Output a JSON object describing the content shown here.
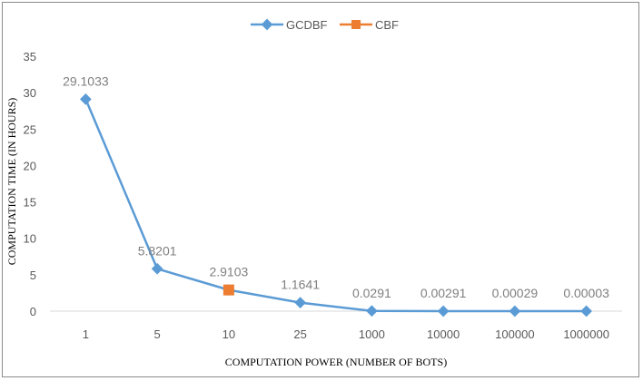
{
  "chart_data": {
    "type": "line",
    "categories": [
      "1",
      "5",
      "10",
      "25",
      "1000",
      "10000",
      "100000",
      "1000000"
    ],
    "series": [
      {
        "name": "GCDBF",
        "color": "#5b9bd5",
        "marker": "diamond",
        "values": [
          29.1033,
          5.8201,
          2.9103,
          1.1641,
          0.0291,
          0.00291,
          0.00029,
          3e-05
        ]
      },
      {
        "name": "CBF",
        "color": "#ed7d31",
        "marker": "square",
        "values": [
          null,
          null,
          2.9103,
          null,
          null,
          null,
          null,
          null
        ]
      }
    ],
    "data_labels": [
      "29.1033",
      "5.8201",
      "2.9103",
      "1.1641",
      "0.0291",
      "0.00291",
      "0.00029",
      "0.00003"
    ],
    "xlabel": "COMPUTATION  POWER (NUMBER OF BOTS)",
    "ylabel": "COMPUTATION  TIME  (IN  HOURS)",
    "ylim": [
      0,
      35
    ],
    "yticks": [
      0,
      5,
      10,
      15,
      20,
      25,
      30,
      35
    ],
    "grid": false,
    "legend_position": "top-center"
  }
}
